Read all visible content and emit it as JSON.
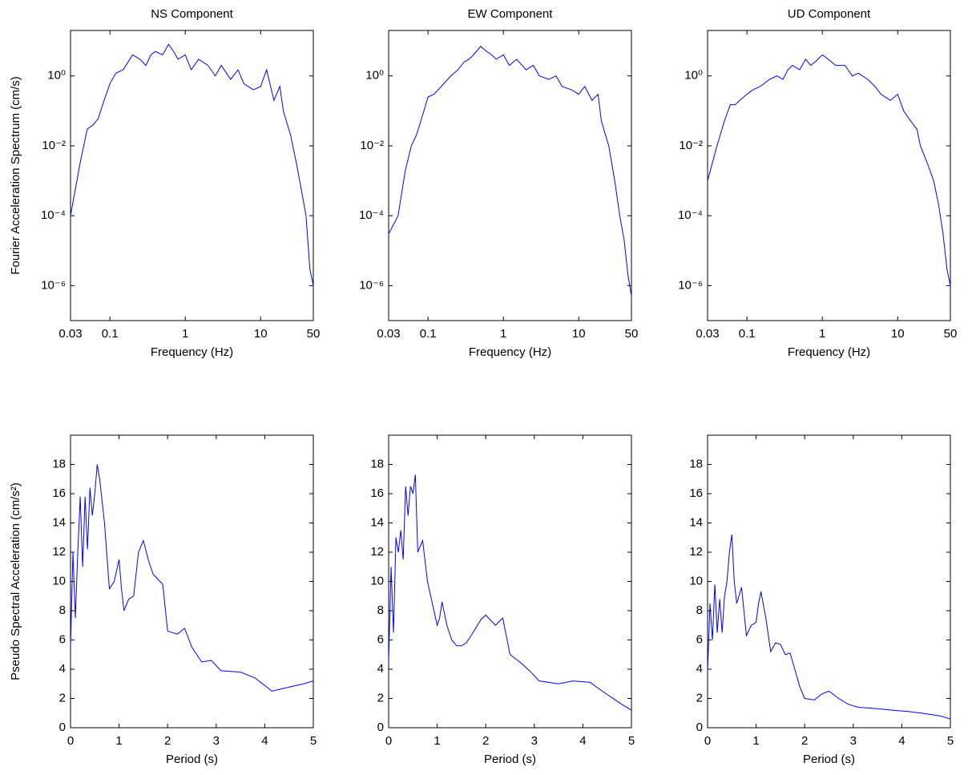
{
  "chart_data": [
    {
      "type": "line",
      "title": "NS Component",
      "xlabel": "Frequency (Hz)",
      "ylabel": "Fourier Acceleration Spectrum (cm/s)",
      "xscale": "log",
      "yscale": "log",
      "color": "#0000ff",
      "xlim": [
        0.03,
        50
      ],
      "ylim": [
        1e-07,
        20
      ],
      "xticks": [
        0.03,
        0.1,
        1,
        10,
        50
      ],
      "yticks": [
        {
          "value": 1e-06,
          "label": "10⁻⁶"
        },
        {
          "value": 0.0001,
          "label": "10⁻⁴"
        },
        {
          "value": 0.01,
          "label": "10⁻²"
        },
        {
          "value": 1,
          "label": "10⁰"
        }
      ],
      "x": [
        0.03,
        0.04,
        0.05,
        0.06,
        0.07,
        0.08,
        0.1,
        0.12,
        0.15,
        0.2,
        0.25,
        0.3,
        0.35,
        0.4,
        0.5,
        0.6,
        0.7,
        0.8,
        1,
        1.2,
        1.5,
        2,
        2.5,
        3,
        4,
        5,
        6,
        8,
        10,
        12,
        15,
        18,
        20,
        25,
        30,
        35,
        40,
        45,
        50
      ],
      "values": [
        0.0001,
        0.003,
        0.03,
        0.04,
        0.06,
        0.15,
        0.6,
        1.2,
        1.5,
        4,
        3,
        2,
        4,
        5,
        4,
        8,
        5,
        3,
        4,
        1.5,
        3,
        2,
        1,
        2,
        0.8,
        1.5,
        0.6,
        0.4,
        0.5,
        1.5,
        0.2,
        0.5,
        0.1,
        0.02,
        0.003,
        0.0005,
        0.0001,
        3e-06,
        1e-06
      ]
    },
    {
      "type": "line",
      "title": "EW Component",
      "xlabel": "Frequency (Hz)",
      "xscale": "log",
      "yscale": "log",
      "color": "#0000ff",
      "xlim": [
        0.03,
        50
      ],
      "ylim": [
        1e-07,
        20
      ],
      "xticks": [
        0.03,
        0.1,
        1,
        10,
        50
      ],
      "yticks": [
        {
          "value": 1e-06,
          "label": "10⁻⁶"
        },
        {
          "value": 0.0001,
          "label": "10⁻⁴"
        },
        {
          "value": 0.01,
          "label": "10⁻²"
        },
        {
          "value": 1,
          "label": "10⁰"
        }
      ],
      "x": [
        0.03,
        0.04,
        0.05,
        0.06,
        0.07,
        0.08,
        0.1,
        0.12,
        0.15,
        0.2,
        0.25,
        0.3,
        0.35,
        0.4,
        0.5,
        0.6,
        0.7,
        0.8,
        1,
        1.2,
        1.5,
        2,
        2.5,
        3,
        4,
        5,
        6,
        8,
        10,
        12,
        15,
        18,
        20,
        25,
        30,
        35,
        40,
        45,
        50
      ],
      "values": [
        3e-05,
        0.0001,
        0.002,
        0.01,
        0.02,
        0.05,
        0.25,
        0.3,
        0.5,
        1,
        1.5,
        2.5,
        3,
        4,
        7,
        5,
        4,
        3,
        4,
        2,
        3,
        1.5,
        2,
        1,
        0.8,
        1,
        0.5,
        0.4,
        0.3,
        0.5,
        0.2,
        0.3,
        0.05,
        0.01,
        0.001,
        0.0001,
        2e-05,
        2e-06,
        5e-07
      ]
    },
    {
      "type": "line",
      "title": "UD Component",
      "xlabel": "Frequency (Hz)",
      "xscale": "log",
      "yscale": "log",
      "color": "#0000ff",
      "xlim": [
        0.03,
        50
      ],
      "ylim": [
        1e-07,
        20
      ],
      "xticks": [
        0.03,
        0.1,
        1,
        10,
        50
      ],
      "yticks": [
        {
          "value": 1e-06,
          "label": "10⁻⁶"
        },
        {
          "value": 0.0001,
          "label": "10⁻⁴"
        },
        {
          "value": 0.01,
          "label": "10⁻²"
        },
        {
          "value": 1,
          "label": "10⁰"
        }
      ],
      "x": [
        0.03,
        0.04,
        0.05,
        0.06,
        0.07,
        0.08,
        0.1,
        0.12,
        0.15,
        0.2,
        0.25,
        0.3,
        0.35,
        0.4,
        0.5,
        0.6,
        0.7,
        0.8,
        1,
        1.2,
        1.5,
        2,
        2.5,
        3,
        4,
        5,
        6,
        8,
        10,
        12,
        15,
        18,
        20,
        25,
        30,
        35,
        40,
        45,
        50
      ],
      "values": [
        0.001,
        0.01,
        0.05,
        0.15,
        0.15,
        0.2,
        0.3,
        0.4,
        0.5,
        0.8,
        1,
        0.8,
        1.5,
        2,
        1.5,
        3,
        2,
        2.5,
        4,
        3,
        2,
        2,
        1,
        1.2,
        0.8,
        0.5,
        0.3,
        0.2,
        0.3,
        0.1,
        0.05,
        0.03,
        0.01,
        0.003,
        0.001,
        0.0002,
        3e-05,
        3e-06,
        1e-06
      ]
    },
    {
      "type": "line",
      "xlabel": "Period (s)",
      "ylabel": "Pseudo Spectral Acceleration (cm/s²)",
      "color": "#0000ff",
      "xlim": [
        0,
        5
      ],
      "ylim": [
        0,
        20
      ],
      "xticks": [
        0,
        1,
        2,
        3,
        4,
        5
      ],
      "yticks": [
        0,
        2,
        4,
        6,
        8,
        10,
        12,
        14,
        16,
        18
      ],
      "x": [
        0,
        0.05,
        0.1,
        0.15,
        0.2,
        0.25,
        0.3,
        0.35,
        0.4,
        0.45,
        0.5,
        0.55,
        0.6,
        0.7,
        0.8,
        0.9,
        1,
        1.05,
        1.1,
        1.2,
        1.3,
        1.4,
        1.5,
        1.6,
        1.7,
        1.9,
        2,
        2.2,
        2.35,
        2.5,
        2.7,
        2.9,
        3.1,
        3.5,
        3.8,
        4.15,
        4.4,
        4.8,
        5
      ],
      "values": [
        5.5,
        12,
        7.5,
        12,
        15.8,
        11,
        15.8,
        12.2,
        16.4,
        14.5,
        16,
        18,
        17,
        14,
        9.5,
        10,
        11.5,
        9.5,
        8,
        8.8,
        9,
        12,
        12.8,
        11.5,
        10.5,
        9.8,
        6.6,
        6.4,
        6.8,
        5.5,
        4.5,
        4.6,
        3.9,
        3.8,
        3.4,
        2.5,
        2.7,
        3,
        3.2
      ]
    },
    {
      "type": "line",
      "xlabel": "Period (s)",
      "color": "#0000ff",
      "xlim": [
        0,
        5
      ],
      "ylim": [
        0,
        20
      ],
      "xticks": [
        0,
        1,
        2,
        3,
        4,
        5
      ],
      "yticks": [
        0,
        2,
        4,
        6,
        8,
        10,
        12,
        14,
        16,
        18
      ],
      "x": [
        0,
        0.05,
        0.1,
        0.15,
        0.2,
        0.25,
        0.3,
        0.35,
        0.4,
        0.45,
        0.5,
        0.55,
        0.6,
        0.7,
        0.8,
        0.9,
        1,
        1.05,
        1.1,
        1.2,
        1.3,
        1.4,
        1.5,
        1.6,
        1.7,
        1.9,
        2,
        2.2,
        2.35,
        2.5,
        2.7,
        2.9,
        3.1,
        3.5,
        3.8,
        4.15,
        4.4,
        4.8,
        5
      ],
      "values": [
        4.5,
        11,
        6.5,
        13,
        12,
        13.5,
        11.5,
        16.5,
        14.5,
        16.5,
        16,
        17.3,
        12,
        12.8,
        10,
        8.5,
        7,
        7.5,
        8.6,
        7,
        6,
        5.6,
        5.6,
        5.8,
        6.3,
        7.4,
        7.7,
        7,
        7.5,
        5,
        4.5,
        3.9,
        3.2,
        3,
        3.2,
        3.1,
        2.5,
        1.6,
        1.2
      ]
    },
    {
      "type": "line",
      "xlabel": "Period (s)",
      "color": "#0000ff",
      "xlim": [
        0,
        5
      ],
      "ylim": [
        0,
        20
      ],
      "xticks": [
        0,
        1,
        2,
        3,
        4,
        5
      ],
      "yticks": [
        0,
        2,
        4,
        6,
        8,
        10,
        12,
        14,
        16,
        18
      ],
      "x": [
        0,
        0.05,
        0.1,
        0.15,
        0.2,
        0.25,
        0.3,
        0.35,
        0.4,
        0.45,
        0.5,
        0.55,
        0.6,
        0.7,
        0.8,
        0.9,
        1,
        1.05,
        1.1,
        1.2,
        1.3,
        1.4,
        1.5,
        1.6,
        1.7,
        1.9,
        2,
        2.2,
        2.35,
        2.5,
        2.7,
        2.9,
        3.1,
        3.5,
        3.8,
        4.15,
        4.4,
        4.8,
        5
      ],
      "values": [
        3.8,
        8.5,
        6,
        9.8,
        6.5,
        8.8,
        6.5,
        9,
        10,
        12,
        13.2,
        10,
        8.5,
        9.6,
        6.3,
        7,
        7.2,
        8.5,
        9.3,
        7.5,
        5.2,
        5.8,
        5.7,
        5,
        5.1,
        2.8,
        2,
        1.9,
        2.3,
        2.5,
        2,
        1.6,
        1.4,
        1.3,
        1.2,
        1.1,
        1,
        0.8,
        0.6
      ]
    }
  ]
}
